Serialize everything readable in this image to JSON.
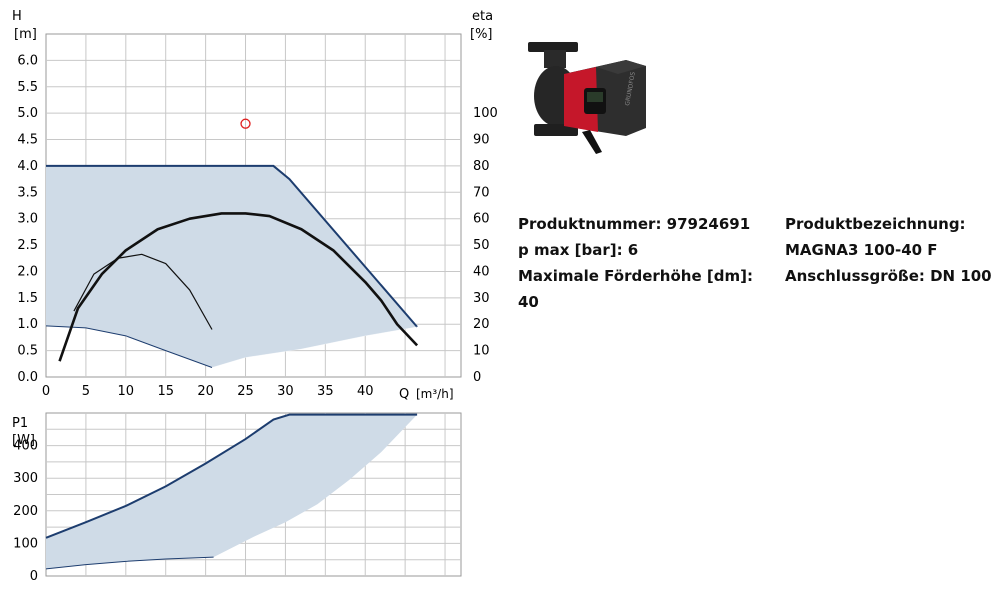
{
  "chart_data": [
    {
      "type": "line",
      "name": "head-and-efficiency-curve",
      "ylabel_left": "H",
      "ylabel_left_unit": "[m]",
      "ylabel_right": "eta",
      "ylabel_right_unit": "[%]",
      "xlabel": "Q",
      "xlabel_unit": "[m³/h]",
      "xlim": [
        0,
        52
      ],
      "ylim": [
        0,
        6.5
      ],
      "yticks": [
        "0.0",
        "0.5",
        "1.0",
        "1.5",
        "2.0",
        "2.5",
        "3.0",
        "3.5",
        "4.0",
        "4.5",
        "5.0",
        "5.5",
        "6.0"
      ],
      "yticks_right": [
        "0",
        "10",
        "20",
        "30",
        "40",
        "50",
        "60",
        "70",
        "80",
        "90",
        "100"
      ],
      "xticks": [
        "0",
        "5",
        "10",
        "15",
        "20",
        "25",
        "30",
        "35",
        "40"
      ],
      "grid": true,
      "operating_envelope": {
        "upper": [
          [
            0,
            4.0
          ],
          [
            28.5,
            4.0
          ],
          [
            30.5,
            3.75
          ],
          [
            46.5,
            0.95
          ]
        ],
        "lower": [
          [
            46.5,
            0.95
          ],
          [
            40,
            0.78
          ],
          [
            32,
            0.53
          ],
          [
            25,
            0.37
          ],
          [
            20.8,
            0.18
          ],
          [
            15,
            0.5
          ],
          [
            10,
            0.78
          ],
          [
            5,
            0.93
          ],
          [
            0,
            0.97
          ]
        ]
      },
      "series": [
        {
          "role": "efficiency-max",
          "axis": "right",
          "color": "#111111",
          "x": [
            1.7,
            4,
            7,
            10,
            14,
            18,
            22,
            25,
            28,
            32,
            36,
            40,
            42,
            44,
            46.5
          ],
          "y": [
            6,
            26,
            39,
            48,
            56,
            60,
            62,
            62,
            61,
            56,
            48,
            36,
            29,
            20,
            12
          ]
        },
        {
          "role": "efficiency-min",
          "axis": "right",
          "color": "#111111",
          "x": [
            3.5,
            6,
            9,
            12,
            15,
            18,
            20.8
          ],
          "y": [
            25,
            39,
            45,
            46.5,
            43,
            33,
            18
          ]
        }
      ],
      "markers": [
        {
          "x": 25,
          "y": 4.8,
          "color": "#e02020"
        }
      ]
    },
    {
      "type": "line",
      "name": "power-curve",
      "ylabel": "P1",
      "ylabel_unit": "[W]",
      "xlim": [
        0,
        52
      ],
      "ylim": [
        0,
        500
      ],
      "yticks": [
        "0",
        "100",
        "200",
        "300",
        "400"
      ],
      "grid": true,
      "envelope": {
        "upper": [
          [
            0,
            117
          ],
          [
            5,
            165
          ],
          [
            10,
            215
          ],
          [
            15,
            275
          ],
          [
            20,
            345
          ],
          [
            25,
            420
          ],
          [
            28.5,
            480
          ],
          [
            30.5,
            495
          ],
          [
            46.5,
            495
          ]
        ],
        "lower": [
          [
            46.5,
            495
          ],
          [
            42,
            380
          ],
          [
            38,
            295
          ],
          [
            34,
            220
          ],
          [
            30,
            165
          ],
          [
            26,
            120
          ],
          [
            21,
            58
          ],
          [
            15,
            52
          ],
          [
            10,
            45
          ],
          [
            5,
            35
          ],
          [
            0,
            22
          ]
        ]
      }
    }
  ],
  "product_image": {
    "alt": "circulator pump",
    "colors": {
      "body": "#2b2b2b",
      "accent": "#c5172a"
    }
  },
  "info": {
    "left": {
      "line1": "Produktnummer: 97924691",
      "line2": "p max [bar]: 6",
      "line3": "Maximale Förderhöhe [dm]: 40"
    },
    "right": {
      "line1": "Produktbezeichnung:",
      "line2": "MAGNA3 100-40 F",
      "line3": "Anschlussgröße: DN 100"
    }
  },
  "colors": {
    "fill": "#cfdbe7",
    "envelope_line": "#1d3d6f",
    "grid": "#c8c8c8",
    "curve": "#111111",
    "marker": "#e02020"
  }
}
